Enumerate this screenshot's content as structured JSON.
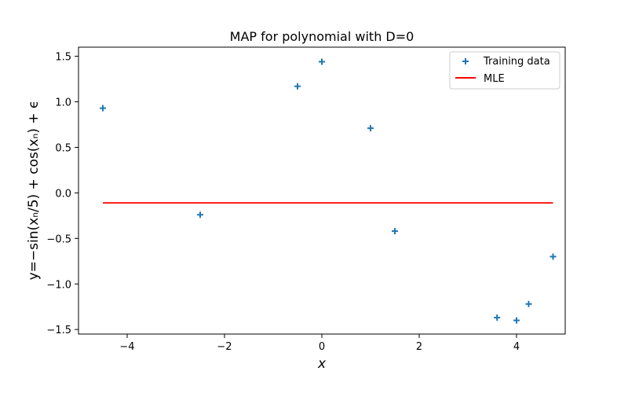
{
  "chart_data": {
    "type": "scatter",
    "title": "MAP for polynomial with D=0",
    "xlabel": "x",
    "ylabel": "y=−sin(xₙ/5) + cos(xₙ) + ϵ",
    "xlim": [
      -5,
      5
    ],
    "ylim": [
      -1.55,
      1.6
    ],
    "xticks": [
      -4,
      -2,
      0,
      2,
      4
    ],
    "yticks": [
      -1.5,
      -1.0,
      -0.5,
      0.0,
      0.5,
      1.0,
      1.5
    ],
    "xtick_labels": [
      "−4",
      "−2",
      "0",
      "2",
      "4"
    ],
    "ytick_labels": [
      "−1.5",
      "−1.0",
      "−0.5",
      "0.0",
      "0.5",
      "1.0",
      "1.5"
    ],
    "grid": false,
    "legend_position": "top-right",
    "series": [
      {
        "name": "Training data",
        "kind": "scatter",
        "marker": "plus",
        "color": "#1f77b4",
        "x": [
          -4.5,
          -2.5,
          -0.5,
          0.0,
          1.0,
          1.5,
          3.6,
          4.0,
          4.25,
          4.75
        ],
        "y": [
          0.93,
          -0.24,
          1.17,
          1.44,
          0.71,
          -0.42,
          -1.37,
          -1.4,
          -1.22,
          -0.7
        ]
      },
      {
        "name": "MLE",
        "kind": "line",
        "color": "#ff0000",
        "x": [
          -4.5,
          4.75
        ],
        "y": [
          -0.11,
          -0.11
        ]
      }
    ]
  }
}
